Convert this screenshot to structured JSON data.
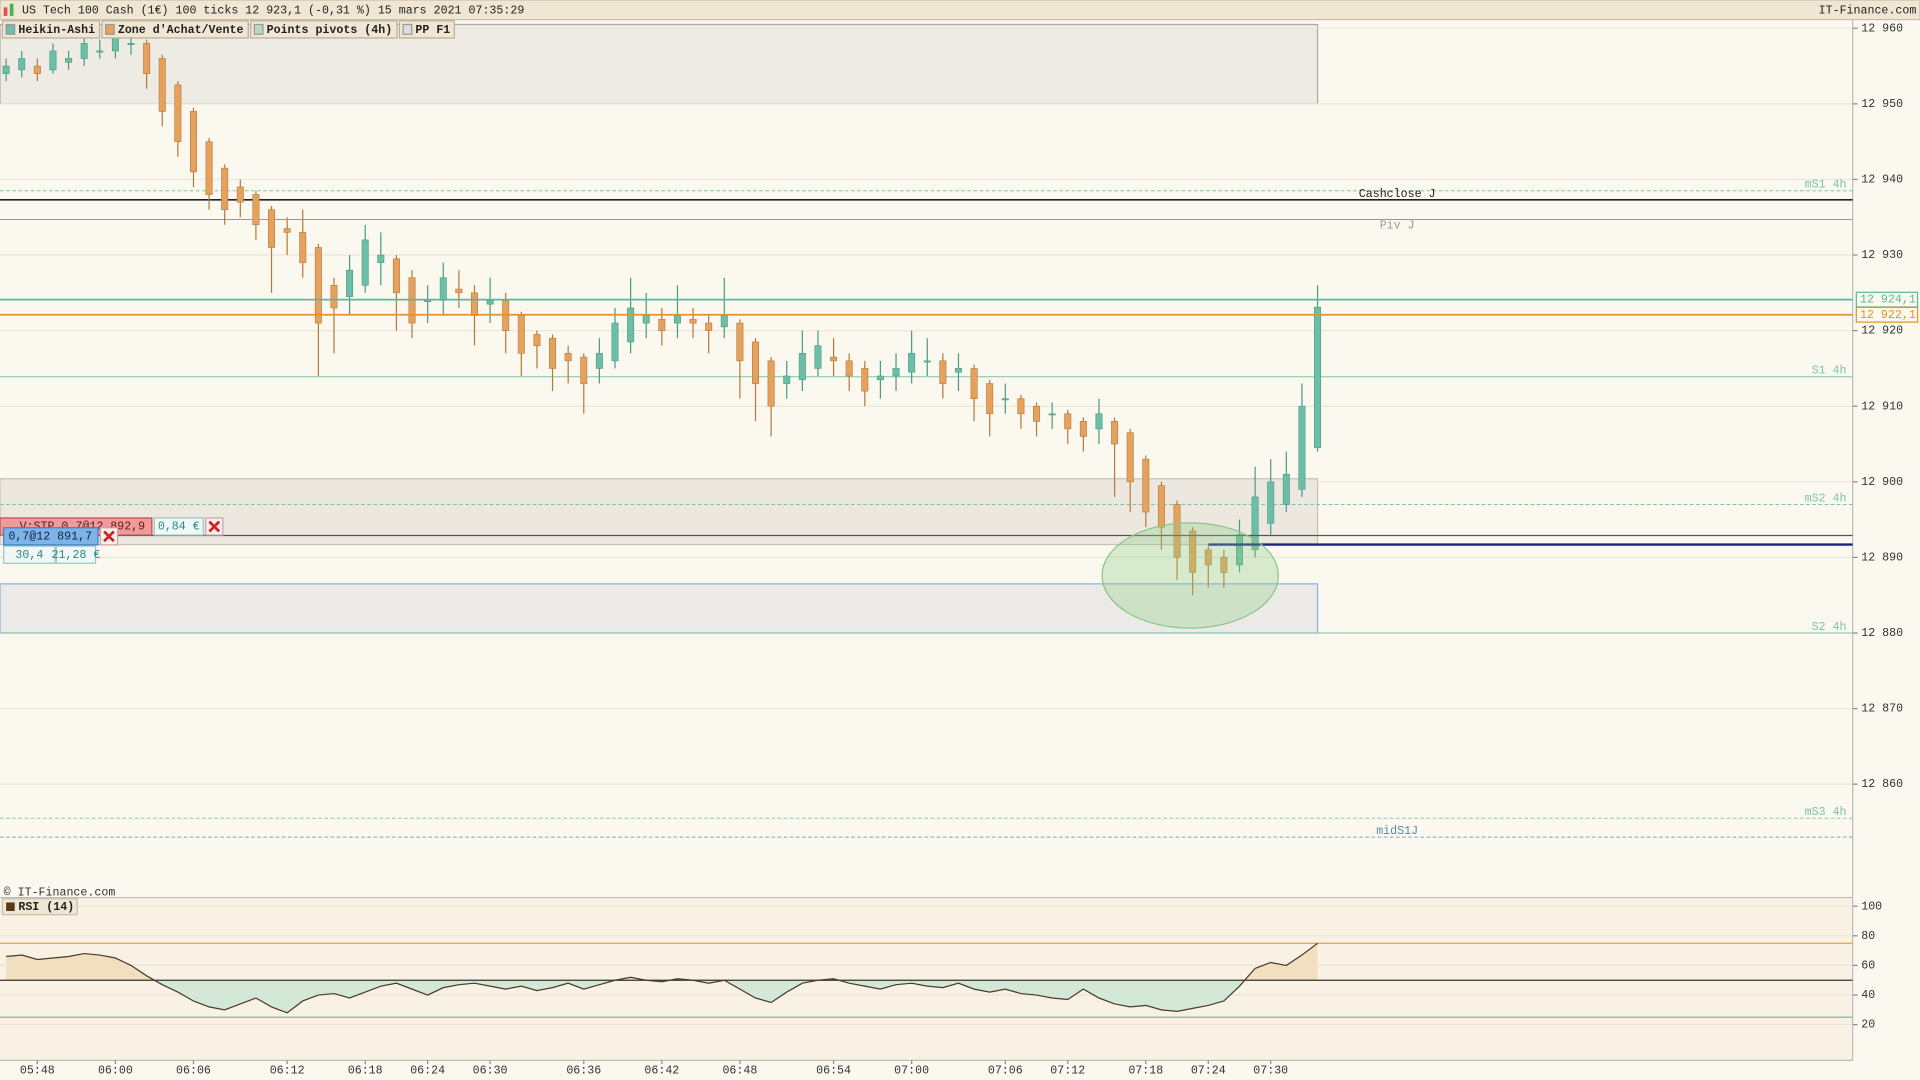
{
  "header": {
    "title": "US Tech 100 Cash (1€) 100 ticks 12 923,1 (-0,31 %) 15 mars 2021 07:35:29",
    "source": "IT-Finance.com"
  },
  "toolbar": [
    {
      "label": "Heikin-Ashi",
      "color": "#6cbfa6"
    },
    {
      "label": "Zone d'Achat/Vente",
      "color": "#e5a25e"
    },
    {
      "label": "Points pivots (4h)",
      "color": "#b8d8c0"
    },
    {
      "label": "PP F1",
      "color": "#ddd"
    }
  ],
  "copyright": "© IT-Finance.com",
  "order_widget": {
    "stop": "V:STP 0,7@12 892,9",
    "stop_pnl": "0,84 €",
    "position": "0,7@12 891,7",
    "points": "30,4",
    "pnl": "21,28 €"
  },
  "chart_data": [
    {
      "type": "candlestick",
      "categories": [
        null,
        null,
        "05:48",
        null,
        null,
        null,
        null,
        "06:00",
        null,
        null,
        null,
        null,
        "06:06",
        null,
        null,
        null,
        null,
        null,
        "06:12",
        null,
        null,
        null,
        null,
        "06:18",
        null,
        null,
        null,
        "06:24",
        null,
        null,
        null,
        "06:30",
        null,
        null,
        null,
        null,
        null,
        "06:36",
        null,
        null,
        null,
        null,
        "06:42",
        null,
        null,
        null,
        null,
        "06:48",
        null,
        null,
        null,
        null,
        null,
        "06:54",
        null,
        null,
        null,
        null,
        "07:00",
        null,
        null,
        null,
        null,
        null,
        "07:06",
        null,
        null,
        null,
        "07:12",
        null,
        null,
        null,
        null,
        "07:18",
        null,
        null,
        null,
        "07:24",
        null,
        null,
        null,
        "07:30",
        null,
        null,
        null
      ],
      "ohlc": [
        [
          12954,
          12956,
          12953,
          12955
        ],
        [
          12954.5,
          12957,
          12953.5,
          12956
        ],
        [
          12955,
          12956,
          12953,
          12954
        ],
        [
          12954.5,
          12958,
          12954,
          12957
        ],
        [
          12955.5,
          12957,
          12954.5,
          12956
        ],
        [
          12956,
          12959,
          12955,
          12958
        ],
        [
          12957,
          12958.5,
          12956,
          12957
        ],
        [
          12957,
          12960,
          12956,
          12959
        ],
        [
          12958,
          12959.5,
          12956.5,
          12958
        ],
        [
          12958,
          12958.5,
          12952,
          12954
        ],
        [
          12956,
          12956.5,
          12947,
          12949
        ],
        [
          12952.5,
          12953,
          12943,
          12945
        ],
        [
          12949,
          12949.5,
          12939,
          12941
        ],
        [
          12945,
          12945.5,
          12936,
          12938
        ],
        [
          12941.5,
          12942,
          12934,
          12936
        ],
        [
          12939,
          12940,
          12935,
          12937
        ],
        [
          12938,
          12938.5,
          12932,
          12934
        ],
        [
          12936,
          12936.5,
          12925,
          12931
        ],
        [
          12933.5,
          12935,
          12930,
          12933
        ],
        [
          12933,
          12936,
          12927,
          12929
        ],
        [
          12931,
          12931.5,
          12914,
          12921
        ],
        [
          12926,
          12927,
          12917,
          12923
        ],
        [
          12924.5,
          12930,
          12922,
          12928
        ],
        [
          12926,
          12934,
          12925,
          12932
        ],
        [
          12929,
          12933,
          12926,
          12930
        ],
        [
          12929.5,
          12930,
          12920,
          12925
        ],
        [
          12927,
          12928,
          12919,
          12921
        ],
        [
          12924,
          12926,
          12921,
          12924
        ],
        [
          12924,
          12929,
          12922,
          12927
        ],
        [
          12925.5,
          12928,
          12923,
          12925
        ],
        [
          12925,
          12926,
          12918,
          12922
        ],
        [
          12923.5,
          12927,
          12921,
          12924
        ],
        [
          12924,
          12925,
          12917,
          12920
        ],
        [
          12922,
          12922.5,
          12914,
          12917
        ],
        [
          12919.5,
          12920,
          12915,
          12918
        ],
        [
          12919,
          12919.5,
          12912,
          12915
        ],
        [
          12917,
          12918,
          12913,
          12916
        ],
        [
          12916.5,
          12917,
          12909,
          12913
        ],
        [
          12915,
          12919,
          12913,
          12917
        ],
        [
          12916,
          12923,
          12915,
          12921
        ],
        [
          12918.5,
          12927,
          12917,
          12923
        ],
        [
          12921,
          12925,
          12919,
          12922
        ],
        [
          12921.5,
          12923,
          12918,
          12920
        ],
        [
          12921,
          12926,
          12919,
          12922
        ],
        [
          12921.5,
          12923,
          12919,
          12921
        ],
        [
          12921,
          12922,
          12917,
          12920
        ],
        [
          12920.5,
          12927,
          12919,
          12922
        ],
        [
          12921,
          12921.5,
          12911,
          12916
        ],
        [
          12918.5,
          12919,
          12908,
          12913
        ],
        [
          12916,
          12916.5,
          12906,
          12910
        ],
        [
          12913,
          12916,
          12911,
          12914
        ],
        [
          12913.5,
          12920,
          12912,
          12917
        ],
        [
          12915,
          12920,
          12914,
          12918
        ],
        [
          12916.5,
          12919,
          12914,
          12916
        ],
        [
          12916,
          12917,
          12912,
          12914
        ],
        [
          12915,
          12916,
          12910,
          12912
        ],
        [
          12913.5,
          12916,
          12911,
          12914
        ],
        [
          12914,
          12917,
          12912,
          12915
        ],
        [
          12914.5,
          12920,
          12913,
          12917
        ],
        [
          12916,
          12919,
          12914,
          12916
        ],
        [
          12916,
          12917,
          12911,
          12913
        ],
        [
          12914.5,
          12917,
          12912,
          12915
        ],
        [
          12915,
          12915.5,
          12908,
          12911
        ],
        [
          12913,
          12913.5,
          12906,
          12909
        ],
        [
          12911,
          12913,
          12909,
          12911
        ],
        [
          12911,
          12911.5,
          12907,
          12909
        ],
        [
          12910,
          12910.5,
          12906,
          12908
        ],
        [
          12909,
          12910.5,
          12907,
          12909
        ],
        [
          12909,
          12909.5,
          12905,
          12907
        ],
        [
          12908,
          12908.5,
          12904,
          12906
        ],
        [
          12907,
          12911,
          12905,
          12909
        ],
        [
          12908,
          12908.5,
          12898,
          12905
        ],
        [
          12906.5,
          12907,
          12896,
          12900
        ],
        [
          12903,
          12903.5,
          12894,
          12896
        ],
        [
          12899.5,
          12900,
          12891,
          12894
        ],
        [
          12897,
          12897.5,
          12887,
          12890
        ],
        [
          12893.5,
          12894,
          12885,
          12888
        ],
        [
          12891,
          12891.5,
          12886,
          12889
        ],
        [
          12890,
          12891,
          12886,
          12888
        ],
        [
          12889,
          12895,
          12888,
          12893
        ],
        [
          12891,
          12902,
          12890,
          12898
        ],
        [
          12894.5,
          12903,
          12893,
          12900
        ],
        [
          12897,
          12904,
          12896,
          12901
        ],
        [
          12899,
          12913,
          12898,
          12910
        ],
        [
          12904.5,
          12926,
          12904,
          12923.1
        ]
      ],
      "colors": {
        "up": "#6cbfa6",
        "down": "#e5a25e"
      },
      "ylim": [
        12845,
        12960.5
      ],
      "yticks": [
        {
          "value": 12860,
          "label": "12 860"
        },
        {
          "value": 12870,
          "label": "12 870"
        },
        {
          "value": 12880,
          "label": "12 880"
        },
        {
          "value": 12890,
          "label": "12 890"
        },
        {
          "value": 12900,
          "label": "12 900"
        },
        {
          "value": 12910,
          "label": "12 910"
        },
        {
          "value": 12920,
          "label": "12 920"
        },
        {
          "value": 12930,
          "label": "12 930"
        },
        {
          "value": 12940,
          "label": "12 940"
        },
        {
          "value": 12950,
          "label": "12 950"
        },
        {
          "value": 12960,
          "label": "12 960"
        }
      ],
      "grid": true,
      "zones": [
        {
          "low": 12950,
          "high": 12960.5,
          "color": "#eeebe4",
          "border": "#aaa"
        },
        {
          "low": 12891.7,
          "high": 12900.4,
          "color": "#ece8e0",
          "border": "#c8c0b0"
        },
        {
          "low": 12880,
          "high": 12886.5,
          "color": "#eceae6",
          "border": "#8fb0e0"
        }
      ],
      "levels": [
        {
          "name": "mS1 4h",
          "value": 12938.5,
          "color": "#7cc4a8",
          "dashed": true,
          "label_position": "right"
        },
        {
          "name": "Cashclose J",
          "value": 12937.3,
          "color": "#222222",
          "dashed": false,
          "label_position": "above"
        },
        {
          "name": "Piv J",
          "value": 12934.7,
          "color": "#999999",
          "dashed": false,
          "label_position": "below"
        },
        {
          "name": "S1 4h",
          "value": 12913.9,
          "color": "#7cc4a8",
          "dashed": false,
          "label_position": "right"
        },
        {
          "name": "mS2 4h",
          "value": 12897,
          "color": "#7cc4a8",
          "dashed": true,
          "label_position": "right"
        },
        {
          "name": "S2 4h",
          "value": 12880,
          "color": "#7cc4a8",
          "dashed": false,
          "label_position": "right"
        },
        {
          "name": "mS3 4h",
          "value": 12855.5,
          "color": "#7cc4a8",
          "dashed": true,
          "label_position": "right"
        },
        {
          "name": "midS1J",
          "value": 12853,
          "color": "#7aa8b8",
          "dashed": true,
          "label_position": "above"
        }
      ],
      "price_lines": [
        {
          "value": 12924.1,
          "label": "12 924,1",
          "color": "#5cb89a"
        },
        {
          "value": 12922.1,
          "label": "12 922,1",
          "color": "#e8902a"
        }
      ],
      "order_lines": [
        {
          "value": 12892.9,
          "color": "#555555",
          "from": 0
        },
        {
          "value": 12891.7,
          "color": "#1a237e",
          "from": 77
        }
      ]
    },
    {
      "type": "line",
      "title": "RSI (14)",
      "color": "#4a3a2a",
      "values": [
        66,
        67,
        64,
        65,
        66,
        68,
        67,
        65,
        60,
        53,
        47,
        42,
        36,
        32,
        30,
        34,
        38,
        32,
        28,
        36,
        40,
        41,
        38,
        42,
        46,
        48,
        44,
        40,
        45,
        47,
        48,
        46,
        44,
        46,
        43,
        45,
        48,
        44,
        47,
        50,
        52,
        50,
        49,
        51,
        50,
        48,
        50,
        44,
        38,
        35,
        42,
        48,
        50,
        51,
        48,
        46,
        44,
        47,
        48,
        46,
        45,
        48,
        44,
        42,
        44,
        41,
        40,
        38,
        37,
        44,
        38,
        34,
        32,
        33,
        30,
        29,
        31,
        33,
        36,
        46,
        58,
        62,
        60,
        67,
        75
      ],
      "ylim": [
        0,
        105
      ],
      "yticks": [
        20,
        40,
        60,
        80,
        100
      ],
      "levels": [
        {
          "value": 75,
          "color": "#e8a040"
        },
        {
          "value": 50,
          "color": "#333333"
        },
        {
          "value": 25,
          "color": "#6cbfa6"
        }
      ],
      "fill_above": "#f2dfc0",
      "fill_below": "#d3e8d6"
    }
  ]
}
